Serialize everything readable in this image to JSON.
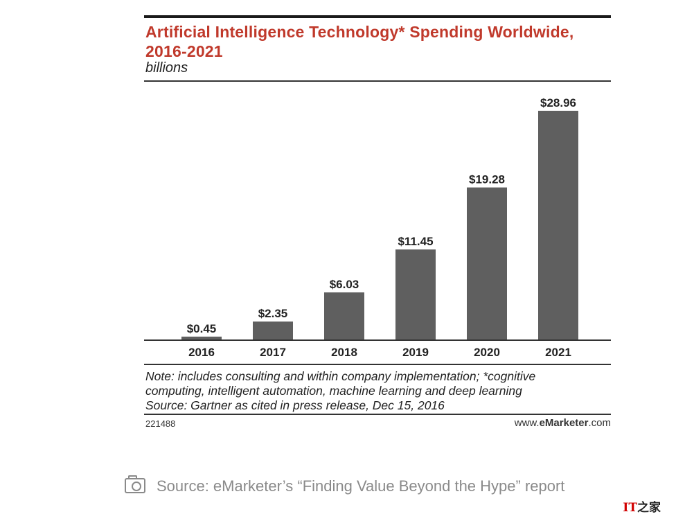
{
  "chart_data": {
    "type": "bar",
    "title": "Artificial Intelligence Technology* Spending Worldwide, 2016-2021",
    "subtitle": "billions",
    "categories": [
      "2016",
      "2017",
      "2018",
      "2019",
      "2020",
      "2021"
    ],
    "values": [
      0.45,
      2.35,
      6.03,
      11.45,
      19.28,
      28.96
    ],
    "value_labels": [
      "$0.45",
      "$2.35",
      "$6.03",
      "$11.45",
      "$19.28",
      "$28.96"
    ],
    "xlabel": "",
    "ylabel": "",
    "ylim": [
      0,
      30
    ],
    "grid": false,
    "bar_color": "#5f5f5f",
    "title_color": "#c0392b"
  },
  "notes": {
    "line1": "Note: includes consulting and within company implementation; *cognitive",
    "line2": "computing, intelligent automation, machine learning and deep learning",
    "source": "Source: Gartner as cited in press release, Dec 15, 2016"
  },
  "footer": {
    "chart_id": "221488",
    "site_prefix": "www.",
    "site_brand": "eMarketer",
    "site_suffix": ".com"
  },
  "caption": {
    "text": "Source: eMarketer’s “Finding Value Beyond the Hype” report",
    "icon": "camera-icon"
  },
  "watermark": {
    "brand": "IT",
    "suffix": "之家"
  }
}
